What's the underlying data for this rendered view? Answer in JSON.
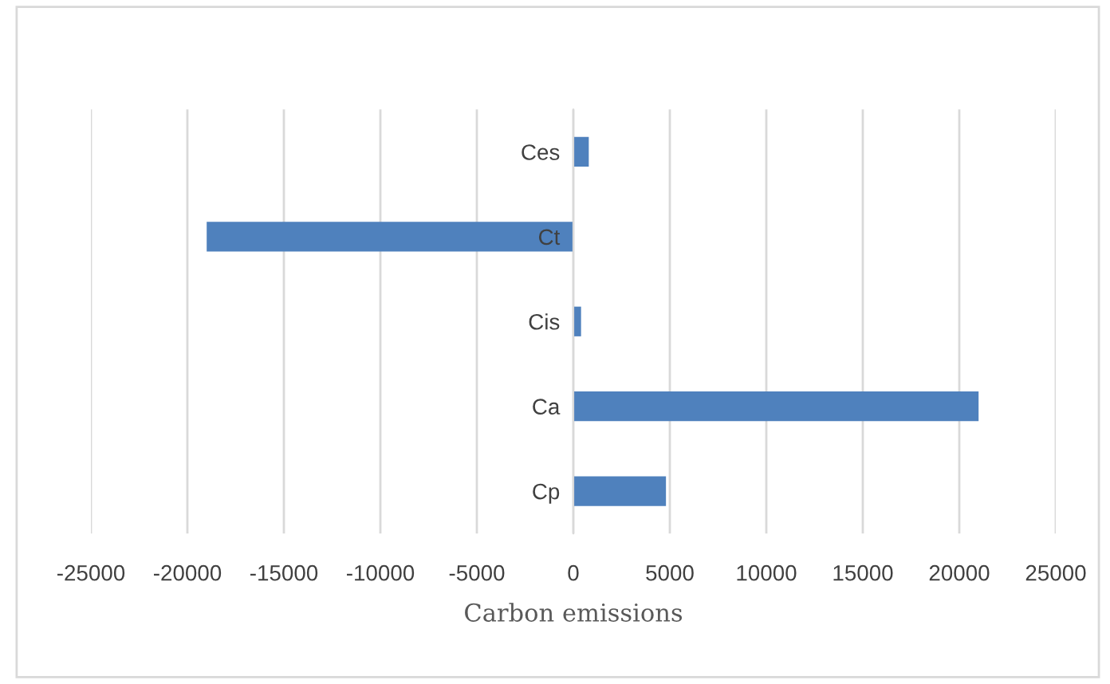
{
  "chart_data": {
    "type": "bar",
    "orientation": "horizontal",
    "xlabel": "Carbon emissions",
    "categories": [
      "Ces",
      "Ct",
      "Cis",
      "Ca",
      "Cp"
    ],
    "values": [
      800,
      -19000,
      400,
      21000,
      4800
    ],
    "color": "#4f81bd",
    "xlim": [
      -25000,
      25000
    ],
    "xticks": [
      -25000,
      -20000,
      -15000,
      -10000,
      -5000,
      0,
      5000,
      10000,
      15000,
      20000,
      25000
    ],
    "grid": "x"
  }
}
